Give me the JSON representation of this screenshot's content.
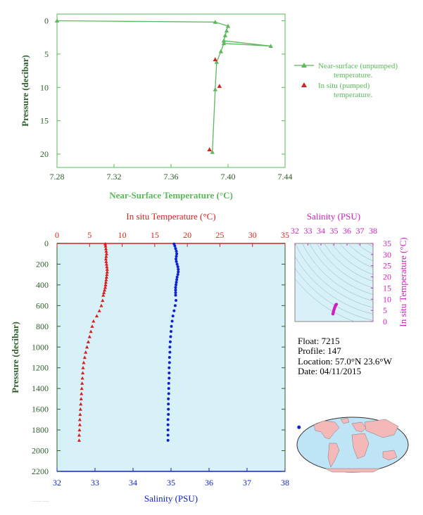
{
  "colors": {
    "green": "#5cb85c",
    "red": "#d62020",
    "blue": "#1020d0",
    "magenta": "#d020c0",
    "plot_bg": "#d8f1f8",
    "axis_text": "#2e5e2e"
  },
  "chart_data": [
    {
      "type": "line",
      "xlabel": "Near-Surface Temperature (°C)",
      "ylabel": "Pressure (decibar)",
      "xlim": [
        7.28,
        7.44
      ],
      "ylim": [
        22,
        -1
      ],
      "x_ticks": [
        "7.28",
        "7.32",
        "7.36",
        "7.40",
        "7.44"
      ],
      "y_ticks": [
        "0",
        "5",
        "10",
        "15",
        "20"
      ],
      "series": [
        {
          "name": "Near-surface (unpumped) temperature.",
          "marker": "triangle",
          "points": [
            {
              "x": 7.28,
              "y": 0.0
            },
            {
              "x": 7.391,
              "y": 0.2
            },
            {
              "x": 7.4,
              "y": 0.8
            },
            {
              "x": 7.399,
              "y": 1.5
            },
            {
              "x": 7.398,
              "y": 2.2
            },
            {
              "x": 7.397,
              "y": 3.0
            },
            {
              "x": 7.43,
              "y": 3.8
            },
            {
              "x": 7.397,
              "y": 3.4
            },
            {
              "x": 7.395,
              "y": 4.6
            },
            {
              "x": 7.392,
              "y": 6.2
            },
            {
              "x": 7.391,
              "y": 10.3
            },
            {
              "x": 7.389,
              "y": 19.7
            }
          ]
        },
        {
          "name": "In situ (pumped) temperature.",
          "marker": "triangle",
          "points": [
            {
              "x": 7.391,
              "y": 5.8
            },
            {
              "x": 7.394,
              "y": 9.8
            },
            {
              "x": 7.387,
              "y": 19.3
            }
          ]
        }
      ]
    },
    {
      "type": "scatter",
      "ylabel": "Pressure (decibar)",
      "ylim": [
        2200,
        0
      ],
      "y_ticks": [
        "0",
        "200",
        "400",
        "600",
        "800",
        "1000",
        "1200",
        "1400",
        "1600",
        "1800",
        "2000",
        "2200"
      ],
      "top_axis": {
        "label": "In situ Temperature (°C)",
        "lim": [
          0,
          35
        ],
        "ticks": [
          "0",
          "5",
          "10",
          "15",
          "20",
          "25",
          "30",
          "35"
        ]
      },
      "bottom_axis": {
        "label": "Salinity (PSU)",
        "lim": [
          32,
          38
        ],
        "ticks": [
          "32",
          "33",
          "34",
          "35",
          "36",
          "37",
          "38"
        ]
      },
      "series": [
        {
          "name": "In situ Temperature",
          "marker": "triangle",
          "points": [
            {
              "t": 7.4,
              "p": 5
            },
            {
              "t": 7.45,
              "p": 25
            },
            {
              "t": 7.5,
              "p": 50
            },
            {
              "t": 7.55,
              "p": 75
            },
            {
              "t": 7.6,
              "p": 100
            },
            {
              "t": 7.55,
              "p": 125
            },
            {
              "t": 7.5,
              "p": 150
            },
            {
              "t": 7.55,
              "p": 175
            },
            {
              "t": 7.6,
              "p": 200
            },
            {
              "t": 7.65,
              "p": 225
            },
            {
              "t": 7.7,
              "p": 250
            },
            {
              "t": 7.7,
              "p": 275
            },
            {
              "t": 7.65,
              "p": 300
            },
            {
              "t": 7.6,
              "p": 325
            },
            {
              "t": 7.55,
              "p": 350
            },
            {
              "t": 7.5,
              "p": 375
            },
            {
              "t": 7.45,
              "p": 400
            },
            {
              "t": 7.4,
              "p": 425
            },
            {
              "t": 7.3,
              "p": 450
            },
            {
              "t": 7.2,
              "p": 475
            },
            {
              "t": 7.1,
              "p": 500
            },
            {
              "t": 7.0,
              "p": 550
            },
            {
              "t": 6.8,
              "p": 600
            },
            {
              "t": 6.5,
              "p": 650
            },
            {
              "t": 6.1,
              "p": 700
            },
            {
              "t": 5.6,
              "p": 750
            },
            {
              "t": 5.4,
              "p": 800
            },
            {
              "t": 5.2,
              "p": 850
            },
            {
              "t": 5.0,
              "p": 900
            },
            {
              "t": 4.8,
              "p": 950
            },
            {
              "t": 4.6,
              "p": 1000
            },
            {
              "t": 4.4,
              "p": 1050
            },
            {
              "t": 4.25,
              "p": 1100
            },
            {
              "t": 4.1,
              "p": 1150
            },
            {
              "t": 4.0,
              "p": 1200
            },
            {
              "t": 3.95,
              "p": 1250
            },
            {
              "t": 3.9,
              "p": 1300
            },
            {
              "t": 3.85,
              "p": 1350
            },
            {
              "t": 3.8,
              "p": 1400
            },
            {
              "t": 3.75,
              "p": 1450
            },
            {
              "t": 3.7,
              "p": 1500
            },
            {
              "t": 3.65,
              "p": 1550
            },
            {
              "t": 3.6,
              "p": 1600
            },
            {
              "t": 3.55,
              "p": 1650
            },
            {
              "t": 3.5,
              "p": 1700
            },
            {
              "t": 3.5,
              "p": 1750
            },
            {
              "t": 3.45,
              "p": 1800
            },
            {
              "t": 3.4,
              "p": 1850
            },
            {
              "t": 3.4,
              "p": 1900
            }
          ]
        },
        {
          "name": "Salinity",
          "marker": "circle",
          "points": [
            {
              "s": 35.08,
              "p": 5
            },
            {
              "s": 35.1,
              "p": 25
            },
            {
              "s": 35.12,
              "p": 50
            },
            {
              "s": 35.14,
              "p": 75
            },
            {
              "s": 35.15,
              "p": 100
            },
            {
              "s": 35.14,
              "p": 125
            },
            {
              "s": 35.13,
              "p": 150
            },
            {
              "s": 35.14,
              "p": 175
            },
            {
              "s": 35.16,
              "p": 200
            },
            {
              "s": 35.18,
              "p": 225
            },
            {
              "s": 35.19,
              "p": 250
            },
            {
              "s": 35.19,
              "p": 275
            },
            {
              "s": 35.18,
              "p": 300
            },
            {
              "s": 35.16,
              "p": 325
            },
            {
              "s": 35.15,
              "p": 350
            },
            {
              "s": 35.14,
              "p": 375
            },
            {
              "s": 35.13,
              "p": 400
            },
            {
              "s": 35.12,
              "p": 425
            },
            {
              "s": 35.12,
              "p": 450
            },
            {
              "s": 35.12,
              "p": 475
            },
            {
              "s": 35.12,
              "p": 500
            },
            {
              "s": 35.13,
              "p": 550
            },
            {
              "s": 35.11,
              "p": 600
            },
            {
              "s": 35.08,
              "p": 650
            },
            {
              "s": 35.05,
              "p": 700
            },
            {
              "s": 35.03,
              "p": 750
            },
            {
              "s": 35.01,
              "p": 800
            },
            {
              "s": 35.0,
              "p": 850
            },
            {
              "s": 34.99,
              "p": 900
            },
            {
              "s": 34.98,
              "p": 950
            },
            {
              "s": 34.97,
              "p": 1000
            },
            {
              "s": 34.97,
              "p": 1050
            },
            {
              "s": 34.96,
              "p": 1100
            },
            {
              "s": 34.96,
              "p": 1150
            },
            {
              "s": 34.95,
              "p": 1200
            },
            {
              "s": 34.95,
              "p": 1250
            },
            {
              "s": 34.95,
              "p": 1300
            },
            {
              "s": 34.94,
              "p": 1350
            },
            {
              "s": 34.94,
              "p": 1400
            },
            {
              "s": 34.94,
              "p": 1450
            },
            {
              "s": 34.93,
              "p": 1500
            },
            {
              "s": 34.93,
              "p": 1550
            },
            {
              "s": 34.93,
              "p": 1600
            },
            {
              "s": 34.93,
              "p": 1650
            },
            {
              "s": 34.92,
              "p": 1700
            },
            {
              "s": 34.92,
              "p": 1750
            },
            {
              "s": 34.92,
              "p": 1800
            },
            {
              "s": 34.92,
              "p": 1850
            },
            {
              "s": 34.92,
              "p": 1900
            }
          ]
        }
      ]
    },
    {
      "type": "scatter",
      "xlabel": "Salinity (PSU)",
      "ylabel": "In situ Temperature (°C)",
      "xlim": [
        32,
        38
      ],
      "ylim": [
        0,
        35
      ],
      "x_ticks": [
        "32",
        "33",
        "34",
        "35",
        "36",
        "37",
        "38"
      ],
      "y_ticks": [
        "0",
        "5",
        "10",
        "15",
        "20",
        "25",
        "30",
        "35"
      ],
      "points": [
        {
          "s": 34.92,
          "t": 3.4
        },
        {
          "s": 34.94,
          "t": 3.9
        },
        {
          "s": 34.96,
          "t": 4.4
        },
        {
          "s": 34.99,
          "t": 5.0
        },
        {
          "s": 35.02,
          "t": 5.6
        },
        {
          "s": 35.06,
          "t": 6.3
        },
        {
          "s": 35.1,
          "t": 6.9
        },
        {
          "s": 35.13,
          "t": 7.3
        },
        {
          "s": 35.16,
          "t": 7.6
        },
        {
          "s": 35.19,
          "t": 7.7
        }
      ]
    }
  ],
  "info": {
    "float": "Float:  7215",
    "profile": "Profile:  147",
    "location": "Location:  57.0°N  23.6°W",
    "date": "Date:  04/11/2015"
  },
  "map": {
    "marker_lat": 57.0,
    "marker_lon": -23.6
  }
}
